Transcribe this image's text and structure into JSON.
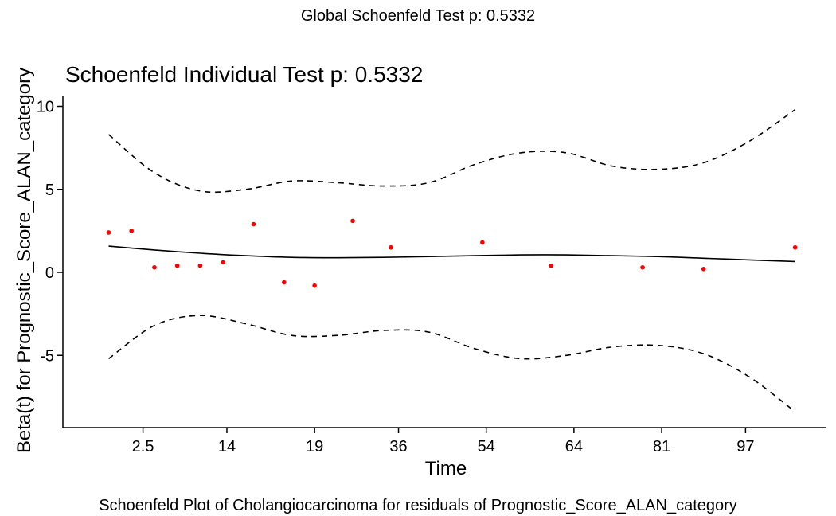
{
  "figure": {
    "global_title": "Global Schoenfeld Test p: 0.5332",
    "caption": "Schoenfeld Plot of Cholangiocarcinoma for residuals of Prognostic_Score_ALAN_category"
  },
  "chart_data": {
    "type": "scatter",
    "title": "Schoenfeld Individual Test p: 0.5332",
    "xlabel": "Time",
    "ylabel": "Beta(t) for Prognostic_Score_ALAN_category",
    "x_ticks": [
      "2.5",
      "14",
      "19",
      "36",
      "54",
      "64",
      "81",
      "97"
    ],
    "y_ticks": [
      10,
      5,
      0,
      -5
    ],
    "ylim": [
      -8.9,
      10.5
    ],
    "x_scale": "rank of event time",
    "grid": false,
    "legend": "none",
    "colors": {
      "points": "#ff0000",
      "lines": "#000000"
    },
    "series": [
      {
        "kind": "points",
        "x": [
          0.6,
          0.9,
          1.2,
          1.5,
          1.8,
          2.1,
          2.5,
          2.9,
          3.3,
          3.8,
          4.3,
          5.5,
          6.4,
          7.6,
          8.4,
          9.6
        ],
        "y": [
          2.4,
          2.5,
          0.3,
          0.4,
          0.4,
          0.6,
          2.9,
          -0.6,
          -0.8,
          3.1,
          1.5,
          1.8,
          0.4,
          0.3,
          0.2,
          1.5
        ]
      },
      {
        "kind": "line",
        "style": "solid",
        "x": [
          0.6,
          1.2,
          1.8,
          2.4,
          3.0,
          3.6,
          4.2,
          4.8,
          5.4,
          6.0,
          6.6,
          7.2,
          7.8,
          8.4,
          9.0,
          9.6
        ],
        "y": [
          1.58,
          1.35,
          1.15,
          1.0,
          0.9,
          0.88,
          0.9,
          0.95,
          1.0,
          1.05,
          1.05,
          1.0,
          0.95,
          0.85,
          0.75,
          0.65
        ]
      },
      {
        "kind": "line",
        "style": "dashed",
        "x": [
          0.6,
          1.2,
          1.8,
          2.4,
          3.0,
          3.6,
          4.2,
          4.8,
          5.4,
          6.0,
          6.6,
          7.2,
          7.8,
          8.4,
          9.0,
          9.6
        ],
        "y": [
          8.3,
          6.0,
          4.9,
          5.0,
          5.5,
          5.4,
          5.2,
          5.4,
          6.5,
          7.2,
          7.2,
          6.4,
          6.2,
          6.6,
          7.9,
          9.8
        ]
      },
      {
        "kind": "line",
        "style": "dashed",
        "x": [
          0.6,
          1.2,
          1.8,
          2.4,
          3.0,
          3.6,
          4.2,
          4.8,
          5.4,
          6.0,
          6.6,
          7.2,
          7.8,
          8.4,
          9.0,
          9.6
        ],
        "y": [
          -5.2,
          -3.2,
          -2.6,
          -3.1,
          -3.8,
          -3.8,
          -3.5,
          -3.6,
          -4.6,
          -5.2,
          -5.0,
          -4.5,
          -4.4,
          -4.9,
          -6.3,
          -8.4
        ]
      }
    ]
  }
}
